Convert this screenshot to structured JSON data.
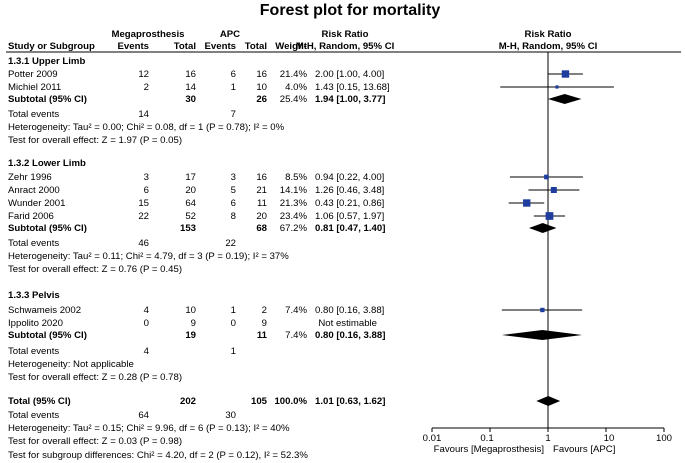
{
  "chart_data": {
    "type": "forest",
    "title": "Forest plot for mortality",
    "group_headers": {
      "exp": "Megaprosthesis",
      "ctl": "APC",
      "rr": "Risk Ratio",
      "rr_plot": "Risk Ratio"
    },
    "col_headers": {
      "study": "Study or Subgroup",
      "exp_events": "Events",
      "exp_total": "Total",
      "ctl_events": "Events",
      "ctl_total": "Total",
      "weight": "Weight",
      "method": "M-H, Random, 95% CI",
      "method_plot": "M-H, Random, 95% CI"
    },
    "subgroups": [
      {
        "name": "1.3.1 Upper Limb",
        "studies": [
          {
            "study": "Potter 2009",
            "e1": "12",
            "n1": "16",
            "e2": "6",
            "n2": "16",
            "weight": "21.4%",
            "ci": "2.00 [1.00, 4.00]",
            "rr": 2.0,
            "lo": 1.0,
            "hi": 4.0,
            "w": 21.4
          },
          {
            "study": "Michiel 2011",
            "e1": "2",
            "n1": "14",
            "e2": "1",
            "n2": "10",
            "weight": "4.0%",
            "ci": "1.43 [0.15, 13.68]",
            "rr": 1.43,
            "lo": 0.15,
            "hi": 13.68,
            "w": 4.0
          }
        ],
        "subtotal": {
          "label": "Subtotal (95% CI)",
          "n1": "30",
          "n2": "26",
          "weight": "25.4%",
          "ci": "1.94 [1.00, 3.77]",
          "rr": 1.94,
          "lo": 1.0,
          "hi": 3.77
        },
        "total_events": {
          "label": "Total events",
          "e1": "14",
          "e2": "7"
        },
        "heterogeneity": "Heterogeneity: Tau² = 0.00; Chi² = 0.08, df = 1 (P = 0.78); I² = 0%",
        "overall_effect": "Test for overall effect: Z = 1.97 (P = 0.05)"
      },
      {
        "name": "1.3.2 Lower Limb",
        "studies": [
          {
            "study": "Zehr 1996",
            "e1": "3",
            "n1": "17",
            "e2": "3",
            "n2": "16",
            "weight": "8.5%",
            "ci": "0.94 [0.22, 4.00]",
            "rr": 0.94,
            "lo": 0.22,
            "hi": 4.0,
            "w": 8.5
          },
          {
            "study": "Anract 2000",
            "e1": "6",
            "n1": "20",
            "e2": "5",
            "n2": "21",
            "weight": "14.1%",
            "ci": "1.26 [0.46, 3.48]",
            "rr": 1.26,
            "lo": 0.46,
            "hi": 3.48,
            "w": 14.1
          },
          {
            "study": "Wunder 2001",
            "e1": "15",
            "n1": "64",
            "e2": "6",
            "n2": "11",
            "weight": "21.3%",
            "ci": "0.43 [0.21, 0.86]",
            "rr": 0.43,
            "lo": 0.21,
            "hi": 0.86,
            "w": 21.3
          },
          {
            "study": "Farid 2006",
            "e1": "22",
            "n1": "52",
            "e2": "8",
            "n2": "20",
            "weight": "23.4%",
            "ci": "1.06 [0.57, 1.97]",
            "rr": 1.06,
            "lo": 0.57,
            "hi": 1.97,
            "w": 23.4
          }
        ],
        "subtotal": {
          "label": "Subtotal (95% CI)",
          "n1": "153",
          "n2": "68",
          "weight": "67.2%",
          "ci": "0.81 [0.47, 1.40]",
          "rr": 0.81,
          "lo": 0.47,
          "hi": 1.4
        },
        "total_events": {
          "label": "Total events",
          "e1": "46",
          "e2": "22"
        },
        "heterogeneity": "Heterogeneity: Tau² = 0.11; Chi² = 4.79, df = 3 (P = 0.19); I² = 37%",
        "overall_effect": "Test for overall effect: Z = 0.76 (P = 0.45)"
      },
      {
        "name": "1.3.3 Pelvis",
        "studies": [
          {
            "study": "Schwameis 2002",
            "e1": "4",
            "n1": "10",
            "e2": "1",
            "n2": "2",
            "weight": "7.4%",
            "ci": "0.80 [0.16, 3.88]",
            "rr": 0.8,
            "lo": 0.16,
            "hi": 3.88,
            "w": 7.4
          },
          {
            "study": "Ippolito 2020",
            "e1": "0",
            "n1": "9",
            "e2": "0",
            "n2": "9",
            "weight": "",
            "ci": "Not estimable",
            "rr": null,
            "lo": null,
            "hi": null,
            "w": 0
          }
        ],
        "subtotal": {
          "label": "Subtotal (95% CI)",
          "n1": "19",
          "n2": "11",
          "weight": "7.4%",
          "ci": "0.80 [0.16, 3.88]",
          "rr": 0.8,
          "lo": 0.16,
          "hi": 3.88
        },
        "total_events": {
          "label": "Total events",
          "e1": "4",
          "e2": "1"
        },
        "heterogeneity": "Heterogeneity: Not applicable",
        "overall_effect": "Test for overall effect: Z = 0.28 (P = 0.78)"
      }
    ],
    "overall": {
      "label": "Total (95% CI)",
      "n1": "202",
      "n2": "105",
      "weight": "100.0%",
      "ci": "1.01 [0.63, 1.62]",
      "rr": 1.01,
      "lo": 0.63,
      "hi": 1.62,
      "total_events": {
        "label": "Total events",
        "e1": "64",
        "e2": "30"
      },
      "heterogeneity": "Heterogeneity: Tau² = 0.15; Chi² = 9.96, df = 6 (P = 0.13); I² = 40%",
      "overall_effect": "Test for overall effect: Z = 0.03 (P = 0.98)",
      "subgroup_diff": "Test for subgroup differences: Chi² = 4.20, df = 2 (P = 0.12), I² = 52.3%"
    },
    "axis": {
      "scale": "log",
      "range": [
        0.01,
        100
      ],
      "ticks": [
        0.01,
        0.1,
        1,
        10,
        100
      ],
      "tick_labels": [
        "0.01",
        "0.1",
        "1",
        "10",
        "100"
      ],
      "favours_left": "Favours [Megaprosthesis]",
      "favours_right": "Favours [APC]"
    },
    "colors": {
      "marker": "#1f3d9e",
      "text": "#000000",
      "line": "#000000"
    }
  }
}
